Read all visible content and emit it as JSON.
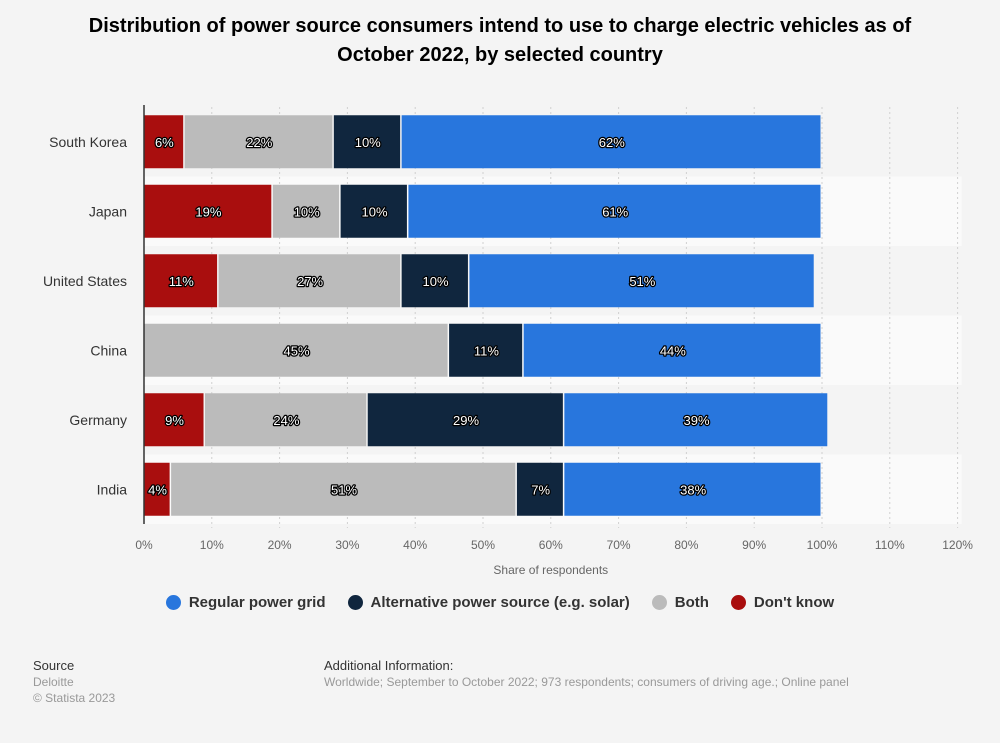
{
  "chart_data": {
    "type": "bar",
    "orientation": "horizontal",
    "stacked": true,
    "title": "Distribution of power source consumers intend to use to charge electric vehicles as of October 2022, by selected country",
    "xlabel": "Share of respondents",
    "ylabel": "",
    "xlim": [
      0,
      120
    ],
    "xticks": [
      "0%",
      "10%",
      "20%",
      "30%",
      "40%",
      "50%",
      "60%",
      "70%",
      "80%",
      "90%",
      "100%",
      "110%",
      "120%"
    ],
    "grid": true,
    "legend_position": "bottom",
    "categories": [
      "South Korea",
      "Japan",
      "United States",
      "China",
      "Germany",
      "India"
    ],
    "series": [
      {
        "name": "Don't know",
        "color": "#a90e0e",
        "values": [
          6,
          19,
          11,
          0,
          9,
          4
        ]
      },
      {
        "name": "Both",
        "color": "#bbbbbb",
        "values": [
          22,
          10,
          27,
          45,
          24,
          51
        ]
      },
      {
        "name": "Alternative power source (e.g. solar)",
        "color": "#10263e",
        "values": [
          10,
          10,
          10,
          11,
          29,
          7
        ]
      },
      {
        "name": "Regular power grid",
        "color": "#2876dd",
        "values": [
          62,
          61,
          51,
          44,
          39,
          38
        ]
      }
    ]
  },
  "legend_order": [
    3,
    2,
    1,
    0
  ],
  "footer": {
    "source_label": "Source",
    "source": "Deloitte",
    "copyright": "© Statista 2023",
    "info_label": "Additional Information:",
    "info": "Worldwide; September to October 2022; 973 respondents; consumers of driving age.; Online panel"
  }
}
